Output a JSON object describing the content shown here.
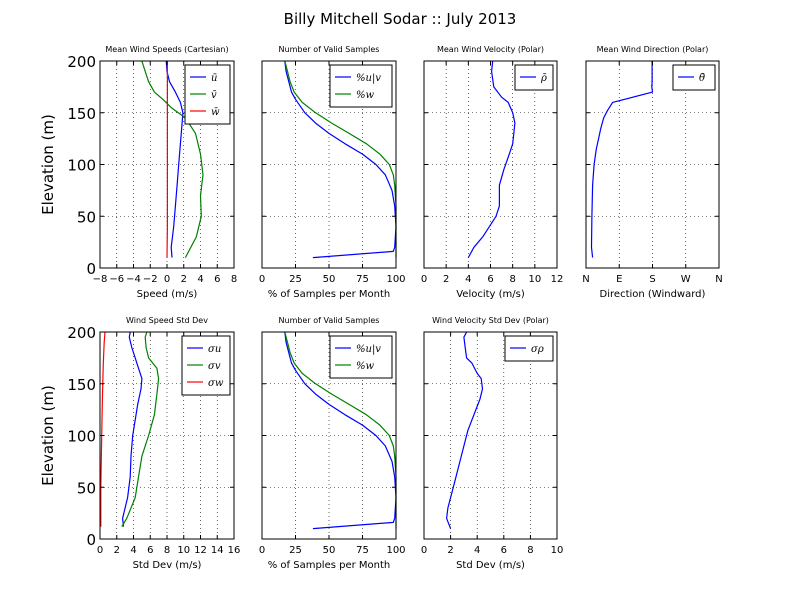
{
  "figure_title": "Billy Mitchell Sodar :: July 2013",
  "colors": {
    "blue": "#0000ff",
    "green": "#008000",
    "red": "#ff0000"
  },
  "chart_data": [
    {
      "id": "mean-speed",
      "type": "line",
      "title": "Mean Wind Speeds (Cartesian)",
      "xlabel": "Speed (m/s)",
      "ylabel": "Elevation (m)",
      "xlim": [
        -8,
        8
      ],
      "ylim": [
        0,
        200
      ],
      "xticks": [
        -8,
        -6,
        -4,
        -2,
        0,
        2,
        4,
        6,
        8
      ],
      "xtick_labels": [
        "−8",
        "−6",
        "−4",
        "−2",
        "0",
        "2",
        "4",
        "6",
        "8"
      ],
      "yticks": [
        0,
        50,
        100,
        150,
        200
      ],
      "show_yticklabels": true,
      "grid": true,
      "legend": "top-right",
      "series": [
        {
          "name": "ū",
          "color": "blue",
          "x": [
            0.6,
            0.5,
            0.8,
            1.0,
            1.2,
            1.4,
            1.6,
            1.8,
            1.9,
            1.6,
            1.0,
            0.3,
            0.0,
            -0.1
          ],
          "y": [
            10,
            20,
            40,
            60,
            80,
            100,
            120,
            140,
            150,
            160,
            170,
            180,
            190,
            200
          ]
        },
        {
          "name": "v̄",
          "color": "green",
          "x": [
            2.2,
            3.5,
            4.1,
            4.0,
            4.3,
            4.0,
            3.4,
            2.2,
            0.5,
            -0.5,
            -1.5,
            -2.2,
            -2.6,
            -3.0
          ],
          "y": [
            10,
            30,
            50,
            70,
            90,
            110,
            130,
            145,
            155,
            163,
            170,
            180,
            190,
            200
          ]
        },
        {
          "name": "w̄",
          "color": "red",
          "x": [
            0.0,
            0.05,
            0.05,
            0.05,
            0.05,
            0.05,
            0.05,
            0.05
          ],
          "y": [
            10,
            40,
            70,
            100,
            130,
            160,
            190,
            200
          ]
        }
      ]
    },
    {
      "id": "valid-samples-1",
      "type": "line",
      "title": "Number of Valid Samples",
      "xlabel": "% of Samples per Month",
      "xlim": [
        0,
        100
      ],
      "ylim": [
        0,
        200
      ],
      "xticks": [
        0,
        25,
        50,
        75,
        100
      ],
      "xtick_labels": [
        "0",
        "25",
        "50",
        "75",
        "100"
      ],
      "yticks": [
        0,
        50,
        100,
        150,
        200
      ],
      "show_yticklabels": false,
      "grid": true,
      "legend": "top-right",
      "series": [
        {
          "name": "%u|v",
          "color": "blue",
          "x": [
            38,
            98,
            99,
            100,
            99,
            97,
            92,
            85,
            75,
            62,
            50,
            40,
            32,
            25,
            22,
            20,
            18,
            17
          ],
          "y": [
            10,
            16,
            20,
            40,
            60,
            75,
            90,
            100,
            110,
            120,
            130,
            140,
            150,
            163,
            170,
            180,
            190,
            200
          ]
        },
        {
          "name": "%w",
          "color": "green",
          "x": [
            100,
            100,
            100,
            100,
            99,
            98,
            95,
            88,
            78,
            65,
            52,
            40,
            30,
            24,
            21,
            19,
            17
          ],
          "y": [
            10,
            20,
            40,
            60,
            80,
            90,
            100,
            110,
            120,
            130,
            140,
            150,
            160,
            170,
            180,
            190,
            200
          ]
        }
      ]
    },
    {
      "id": "mean-velocity-polar",
      "type": "line",
      "title": "Mean Wind Velocity (Polar)",
      "xlabel": "Velocity (m/s)",
      "xlim": [
        0,
        12
      ],
      "ylim": [
        0,
        200
      ],
      "xticks": [
        0,
        2,
        4,
        6,
        8,
        10,
        12
      ],
      "xtick_labels": [
        "0",
        "2",
        "4",
        "6",
        "8",
        "10",
        "12"
      ],
      "yticks": [
        0,
        50,
        100,
        150,
        200
      ],
      "show_yticklabels": false,
      "grid": true,
      "legend": "top-right",
      "series": [
        {
          "name": "ρ̄",
          "color": "blue",
          "x": [
            4.0,
            4.5,
            5.3,
            5.9,
            6.5,
            6.8,
            6.8,
            7.2,
            7.7,
            8.0,
            8.1,
            8.2,
            8.0,
            7.6,
            7.0,
            6.3,
            6.1,
            6.2
          ],
          "y": [
            10,
            20,
            30,
            40,
            50,
            60,
            80,
            95,
            110,
            120,
            130,
            140,
            150,
            160,
            165,
            175,
            190,
            200
          ]
        }
      ]
    },
    {
      "id": "mean-direction-polar",
      "type": "line",
      "title": "Mean Wind Direction (Polar)",
      "xlabel": "Direction (Windward)",
      "xlim": [
        0,
        360
      ],
      "ylim": [
        0,
        200
      ],
      "xticks": [
        0,
        90,
        180,
        270,
        360
      ],
      "xtick_labels": [
        "N",
        "E",
        "S",
        "W",
        "N"
      ],
      "yticks": [
        0,
        50,
        100,
        150,
        200
      ],
      "show_yticklabels": false,
      "grid": true,
      "legend": "top-right",
      "series": [
        {
          "name": "θ̄",
          "color": "blue",
          "x": [
            18,
            15,
            16,
            18,
            22,
            28,
            34,
            40,
            48,
            58,
            72,
            180,
            178,
            179,
            179,
            179
          ],
          "y": [
            10,
            20,
            50,
            80,
            100,
            115,
            125,
            135,
            145,
            152,
            160,
            170,
            175,
            180,
            190,
            200
          ]
        }
      ]
    },
    {
      "id": "speed-std-dev",
      "type": "line",
      "title": "Wind Speed Std Dev",
      "xlabel": "Std Dev (m/s)",
      "ylabel": "Elevation (m)",
      "xlim": [
        0,
        16
      ],
      "ylim": [
        0,
        200
      ],
      "xticks": [
        0,
        2,
        4,
        6,
        8,
        10,
        12,
        14,
        16
      ],
      "xtick_labels": [
        "0",
        "2",
        "4",
        "6",
        "8",
        "10",
        "12",
        "14",
        "16"
      ],
      "yticks": [
        0,
        50,
        100,
        150,
        200
      ],
      "show_yticklabels": true,
      "grid": true,
      "legend": "top-right",
      "series": [
        {
          "name": "σu",
          "color": "blue",
          "x": [
            2.8,
            2.7,
            3.3,
            3.6,
            3.7,
            3.9,
            4.2,
            4.5,
            4.9,
            5.0,
            4.6,
            4.2,
            3.8,
            3.5,
            3.6
          ],
          "y": [
            12,
            20,
            40,
            60,
            80,
            100,
            115,
            130,
            145,
            155,
            165,
            175,
            185,
            195,
            200
          ]
        },
        {
          "name": "σv",
          "color": "green",
          "x": [
            2.6,
            3.2,
            4.2,
            4.6,
            5.0,
            5.8,
            6.5,
            6.8,
            7.0,
            6.8,
            5.8,
            5.5,
            5.4,
            5.6
          ],
          "y": [
            12,
            20,
            40,
            60,
            80,
            100,
            120,
            140,
            155,
            165,
            175,
            185,
            195,
            200
          ]
        },
        {
          "name": "σw",
          "color": "red",
          "x": [
            0.1,
            0.1,
            0.2,
            0.3,
            0.4,
            0.5,
            0.6
          ],
          "y": [
            12,
            50,
            100,
            140,
            170,
            190,
            200
          ]
        }
      ]
    },
    {
      "id": "valid-samples-2",
      "type": "line",
      "title": "Number of Valid Samples",
      "xlabel": "% of Samples per Month",
      "xlim": [
        0,
        100
      ],
      "ylim": [
        0,
        200
      ],
      "xticks": [
        0,
        25,
        50,
        75,
        100
      ],
      "xtick_labels": [
        "0",
        "25",
        "50",
        "75",
        "100"
      ],
      "yticks": [
        0,
        50,
        100,
        150,
        200
      ],
      "show_yticklabels": false,
      "grid": true,
      "legend": "top-right",
      "series": [
        {
          "name": "%u|v",
          "color": "blue",
          "x": [
            38,
            98,
            99,
            100,
            99,
            97,
            92,
            85,
            75,
            62,
            50,
            40,
            32,
            25,
            22,
            20,
            18,
            17
          ],
          "y": [
            10,
            16,
            20,
            40,
            60,
            75,
            90,
            100,
            110,
            120,
            130,
            140,
            150,
            163,
            170,
            180,
            190,
            200
          ]
        },
        {
          "name": "%w",
          "color": "green",
          "x": [
            100,
            100,
            100,
            100,
            99,
            98,
            95,
            88,
            78,
            65,
            52,
            40,
            30,
            24,
            21,
            19,
            17
          ],
          "y": [
            10,
            20,
            40,
            60,
            80,
            90,
            100,
            110,
            120,
            130,
            140,
            150,
            160,
            170,
            180,
            190,
            200
          ]
        }
      ]
    },
    {
      "id": "velocity-std-dev-polar",
      "type": "line",
      "title": "Wind Velocity Std Dev (Polar)",
      "xlabel": "Std Dev (m/s)",
      "xlim": [
        0,
        10
      ],
      "ylim": [
        0,
        200
      ],
      "xticks": [
        0,
        2,
        4,
        6,
        8,
        10
      ],
      "xtick_labels": [
        "0",
        "2",
        "4",
        "6",
        "8",
        "10"
      ],
      "yticks": [
        0,
        50,
        100,
        150,
        200
      ],
      "show_yticklabels": false,
      "grid": true,
      "legend": "top-right",
      "series": [
        {
          "name": "σρ",
          "color": "blue",
          "x": [
            2.0,
            1.7,
            1.8,
            2.2,
            2.6,
            3.0,
            3.3,
            3.6,
            3.9,
            4.2,
            4.4,
            4.3,
            4.0,
            3.6,
            3.2,
            3.1,
            3.0,
            3.2
          ],
          "y": [
            10,
            20,
            30,
            50,
            70,
            90,
            105,
            115,
            125,
            135,
            145,
            155,
            160,
            170,
            175,
            185,
            195,
            200
          ]
        }
      ]
    }
  ]
}
